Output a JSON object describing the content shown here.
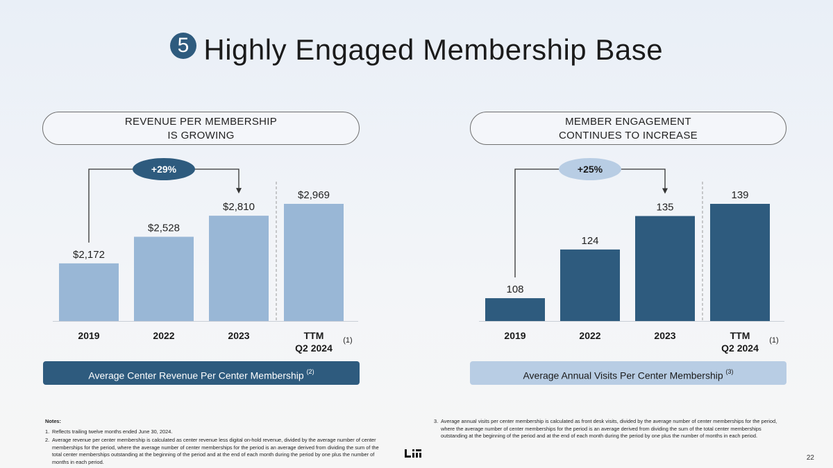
{
  "title": {
    "number": "5",
    "text": "Highly Engaged Membership Base"
  },
  "left_panel": {
    "header_line1": "REVENUE PER MEMBERSHIP",
    "header_line2": "IS GROWING",
    "growth_badge": "+29%",
    "footer_label": "Average Center Revenue Per Center Membership",
    "footer_superscript": "(2)",
    "colors": {
      "bar": "#99b7d6",
      "badge": "#2e5b7e",
      "footer_bg": "#2e5b7e",
      "footer_text": "#ffffff"
    }
  },
  "right_panel": {
    "header_line1": "MEMBER ENGAGEMENT",
    "header_line2": "CONTINUES TO INCREASE",
    "growth_badge": "+25%",
    "footer_label": "Average Annual Visits Per Center Membership",
    "footer_superscript": "(3)",
    "colors": {
      "bar": "#2e5b7e",
      "badge": "#b8cde4",
      "footer_bg": "#b8cde4",
      "footer_text": "#1a1a1a"
    }
  },
  "chart_data": [
    {
      "type": "bar",
      "title": "Revenue Per Membership Is Growing",
      "categories": [
        "2019",
        "2022",
        "2023",
        "TTM Q2 2024"
      ],
      "category_lines": [
        [
          "2019"
        ],
        [
          "2022"
        ],
        [
          "2023"
        ],
        [
          "TTM",
          "Q2 2024"
        ]
      ],
      "category_footnote": "(1)",
      "values": [
        2172,
        2528,
        2810,
        2969
      ],
      "value_labels": [
        "$2,172",
        "$2,528",
        "$2,810",
        "$2,969"
      ],
      "ylabel": "Average Center Revenue Per Center Membership",
      "ylim": [
        1400,
        3100
      ],
      "annotation": {
        "text": "+29%",
        "from": "2019",
        "to": "2023"
      }
    },
    {
      "type": "bar",
      "title": "Member Engagement Continues To Increase",
      "categories": [
        "2019",
        "2022",
        "2023",
        "TTM Q2 2024"
      ],
      "category_lines": [
        [
          "2019"
        ],
        [
          "2022"
        ],
        [
          "2023"
        ],
        [
          "TTM",
          "Q2 2024"
        ]
      ],
      "category_footnote": "(1)",
      "values": [
        108,
        124,
        135,
        139
      ],
      "value_labels": [
        "108",
        "124",
        "135",
        "139"
      ],
      "ylabel": "Average Annual Visits Per Center Membership",
      "ylim": [
        100.5,
        144
      ],
      "annotation": {
        "text": "+25%",
        "from": "2019",
        "to": "2023"
      }
    }
  ],
  "notes": {
    "heading": "Notes:",
    "left_items": [
      {
        "num": "1.",
        "text": "Reflects trailing twelve months ended June 30, 2024."
      },
      {
        "num": "2.",
        "text": "Average revenue per center membership is calculated as center revenue less digital on-hold revenue, divided by the average number of center memberships for the period, where the average number of center memberships for the period is an average derived from dividing the sum of the total center memberships outstanding at the beginning of the period and at the end of each month during the period by one plus the number of months in each period."
      }
    ],
    "right_items": [
      {
        "num": "3.",
        "text": "Average annual visits per center membership is calculated as front desk visits, divided by the average number of center memberships for the period, where the average number of center memberships for the period is an average derived from dividing the sum of the total center memberships outstanding at the beginning of the period and at the end of each month during the period by one plus the number of months in each period."
      }
    ]
  },
  "page_number": "22"
}
